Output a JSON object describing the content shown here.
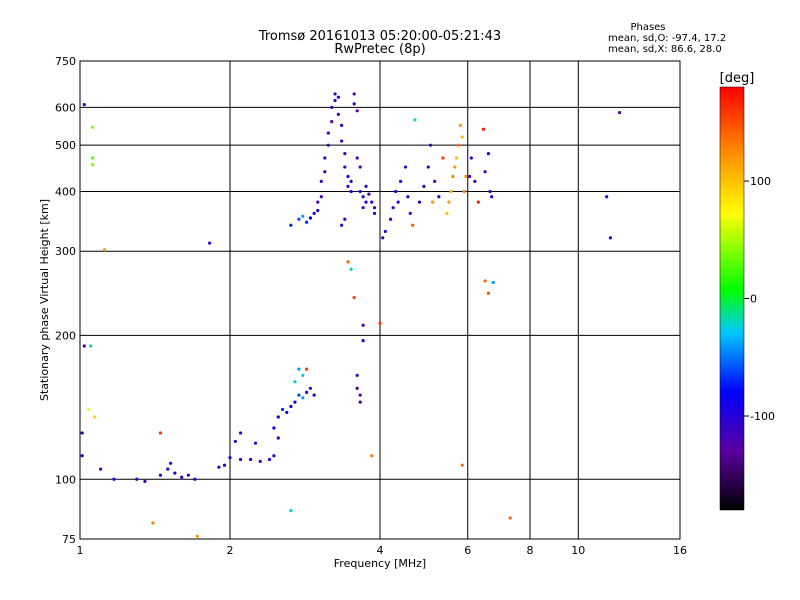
{
  "chart_data": {
    "type": "scatter",
    "title": "Tromsø 20161013 05:20:00-05:21:43",
    "subtitle": "RwPretec (8p)",
    "xlabel": "Frequency [MHz]",
    "ylabel": "Stationary phase Virtual Height [km]",
    "x_scale": "log",
    "y_scale": "log",
    "xlim": [
      1,
      16
    ],
    "ylim": [
      75,
      750
    ],
    "x_ticks": [
      1,
      2,
      4,
      6,
      8,
      10,
      16
    ],
    "y_ticks": [
      75,
      100,
      200,
      300,
      400,
      500,
      600,
      750
    ],
    "grid": true,
    "phase_stats": {
      "heading": "Phases",
      "line_o": "mean, sd,O: -97.4, 17.2",
      "line_x": "mean, sd,X:  86.6, 28.0"
    },
    "colorbar": {
      "label": "[deg]",
      "range": [
        -180,
        180
      ],
      "ticks": [
        100,
        0,
        -100
      ],
      "colors": [
        "#000000",
        "#5a00a0",
        "#0000ff",
        "#00c8ff",
        "#00ff00",
        "#ffff00",
        "#ff8800",
        "#ff0000"
      ]
    },
    "series": [
      {
        "values": [
          [
            1.02,
            608,
            -110
          ],
          [
            1.02,
            190,
            -110
          ],
          [
            1.01,
            125,
            -100
          ],
          [
            1.01,
            112,
            -100
          ],
          [
            1.05,
            190,
            -20
          ],
          [
            1.06,
            545,
            40
          ],
          [
            1.06,
            470,
            30
          ],
          [
            1.06,
            455,
            40
          ],
          [
            1.04,
            140,
            70
          ],
          [
            1.07,
            135,
            90
          ],
          [
            1.12,
            302,
            120
          ],
          [
            1.1,
            105,
            -120
          ],
          [
            1.17,
            100,
            -100
          ],
          [
            1.3,
            100,
            -100
          ],
          [
            1.35,
            99,
            -110
          ],
          [
            1.45,
            102,
            -100
          ],
          [
            1.5,
            105,
            -100
          ],
          [
            1.55,
            103,
            -110
          ],
          [
            1.6,
            101,
            -100
          ],
          [
            1.65,
            102,
            -110
          ],
          [
            1.7,
            100,
            -100
          ],
          [
            1.52,
            108,
            -100
          ],
          [
            1.4,
            81,
            130
          ],
          [
            1.45,
            125,
            160
          ],
          [
            1.72,
            76,
            120
          ],
          [
            1.82,
            312,
            -110
          ],
          [
            1.9,
            106,
            -100
          ],
          [
            1.95,
            107,
            -100
          ],
          [
            2.0,
            111,
            -100
          ],
          [
            2.1,
            110,
            -110
          ],
          [
            2.2,
            110,
            -100
          ],
          [
            2.3,
            109,
            -110
          ],
          [
            2.4,
            110,
            -100
          ],
          [
            2.45,
            112,
            -110
          ],
          [
            2.05,
            120,
            -110
          ],
          [
            2.1,
            125,
            -100
          ],
          [
            2.25,
            119,
            -100
          ],
          [
            2.5,
            122,
            -110
          ],
          [
            2.45,
            128,
            -90
          ],
          [
            2.5,
            135,
            -80
          ],
          [
            2.55,
            140,
            -70
          ],
          [
            2.6,
            138,
            -80
          ],
          [
            2.65,
            142,
            -90
          ],
          [
            2.7,
            145,
            -100
          ],
          [
            2.75,
            150,
            -60
          ],
          [
            2.8,
            148,
            -40
          ],
          [
            2.85,
            152,
            -90
          ],
          [
            2.9,
            155,
            -100
          ],
          [
            2.95,
            150,
            -100
          ],
          [
            2.7,
            160,
            -20
          ],
          [
            2.8,
            165,
            -30
          ],
          [
            2.85,
            170,
            160
          ],
          [
            2.75,
            170,
            -40
          ],
          [
            2.65,
            86,
            -20
          ],
          [
            2.65,
            340,
            -70
          ],
          [
            2.75,
            350,
            -60
          ],
          [
            2.8,
            355,
            -40
          ],
          [
            2.85,
            345,
            -70
          ],
          [
            2.9,
            352,
            -80
          ],
          [
            2.95,
            360,
            -90
          ],
          [
            3.0,
            365,
            -100
          ],
          [
            3.0,
            380,
            -120
          ],
          [
            3.05,
            390,
            -120
          ],
          [
            3.05,
            420,
            -110
          ],
          [
            3.1,
            440,
            -120
          ],
          [
            3.1,
            470,
            -110
          ],
          [
            3.15,
            500,
            -120
          ],
          [
            3.15,
            530,
            -110
          ],
          [
            3.2,
            560,
            -120
          ],
          [
            3.2,
            600,
            -110
          ],
          [
            3.25,
            620,
            -120
          ],
          [
            3.25,
            640,
            -110
          ],
          [
            3.3,
            630,
            -100
          ],
          [
            3.3,
            580,
            -110
          ],
          [
            3.35,
            550,
            -100
          ],
          [
            3.35,
            510,
            -110
          ],
          [
            3.4,
            480,
            -120
          ],
          [
            3.4,
            450,
            -110
          ],
          [
            3.45,
            430,
            -100
          ],
          [
            3.45,
            410,
            -110
          ],
          [
            3.5,
            400,
            -100
          ],
          [
            3.5,
            420,
            -110
          ],
          [
            3.55,
            640,
            -120
          ],
          [
            3.55,
            610,
            -110
          ],
          [
            3.6,
            590,
            -130
          ],
          [
            3.6,
            470,
            -120
          ],
          [
            3.65,
            450,
            -110
          ],
          [
            3.65,
            400,
            -100
          ],
          [
            3.7,
            390,
            -110
          ],
          [
            3.7,
            370,
            -120
          ],
          [
            3.75,
            380,
            -100
          ],
          [
            3.75,
            410,
            -110
          ],
          [
            3.8,
            395,
            -120
          ],
          [
            3.85,
            380,
            -110
          ],
          [
            3.9,
            360,
            -100
          ],
          [
            3.9,
            370,
            -110
          ],
          [
            3.4,
            350,
            -110
          ],
          [
            3.35,
            340,
            -110
          ],
          [
            3.45,
            285,
            140
          ],
          [
            3.5,
            275,
            -20
          ],
          [
            3.55,
            240,
            160
          ],
          [
            3.6,
            165,
            -120
          ],
          [
            3.6,
            155,
            -150
          ],
          [
            3.65,
            150,
            -130
          ],
          [
            3.65,
            145,
            -140
          ],
          [
            3.7,
            210,
            -120
          ],
          [
            3.7,
            195,
            -100
          ],
          [
            3.85,
            112,
            130
          ],
          [
            4.0,
            212,
            160
          ],
          [
            4.05,
            320,
            -110
          ],
          [
            4.1,
            330,
            -100
          ],
          [
            4.2,
            350,
            -110
          ],
          [
            4.25,
            370,
            -110
          ],
          [
            4.3,
            400,
            -100
          ],
          [
            4.35,
            380,
            -110
          ],
          [
            4.4,
            420,
            -100
          ],
          [
            4.5,
            450,
            -110
          ],
          [
            4.55,
            390,
            -100
          ],
          [
            4.6,
            360,
            -110
          ],
          [
            4.65,
            340,
            140
          ],
          [
            4.7,
            565,
            -20
          ],
          [
            4.8,
            380,
            -100
          ],
          [
            4.9,
            410,
            -110
          ],
          [
            5.0,
            450,
            -100
          ],
          [
            5.05,
            500,
            -110
          ],
          [
            5.1,
            380,
            120
          ],
          [
            5.15,
            420,
            -110
          ],
          [
            5.25,
            390,
            -100
          ],
          [
            5.35,
            470,
            160
          ],
          [
            5.45,
            360,
            100
          ],
          [
            5.5,
            380,
            120
          ],
          [
            5.55,
            400,
            110
          ],
          [
            5.6,
            430,
            130
          ],
          [
            5.65,
            450,
            120
          ],
          [
            5.7,
            470,
            100
          ],
          [
            5.75,
            500,
            140
          ],
          [
            5.8,
            550,
            120
          ],
          [
            5.85,
            520,
            100
          ],
          [
            5.9,
            400,
            130
          ],
          [
            5.95,
            430,
            120
          ],
          [
            5.85,
            107,
            140
          ],
          [
            6.05,
            430,
            -110
          ],
          [
            6.1,
            470,
            -110
          ],
          [
            6.2,
            420,
            -100
          ],
          [
            6.3,
            380,
            170
          ],
          [
            6.45,
            540,
            170
          ],
          [
            6.5,
            440,
            -110
          ],
          [
            6.6,
            480,
            -100
          ],
          [
            6.65,
            400,
            -110
          ],
          [
            6.7,
            390,
            -100
          ],
          [
            6.5,
            260,
            140
          ],
          [
            6.6,
            245,
            150
          ],
          [
            6.75,
            258,
            -40
          ],
          [
            7.3,
            83,
            140
          ],
          [
            11.4,
            390,
            -110
          ],
          [
            11.6,
            320,
            -110
          ],
          [
            12.1,
            585,
            -120
          ]
        ]
      }
    ]
  }
}
